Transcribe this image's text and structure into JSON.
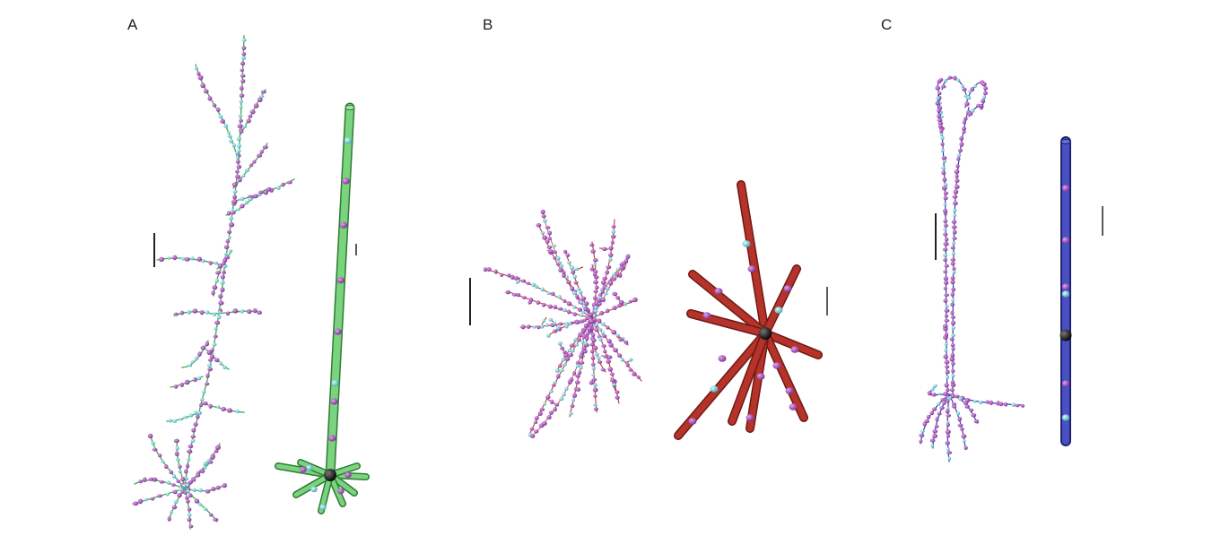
{
  "panels": [
    {
      "label": "A",
      "color": "#4caf50",
      "description_key": "pyramidal-neuron"
    },
    {
      "label": "B",
      "color": "#b5332a",
      "description_key": "stellate-neuron"
    },
    {
      "label": "C",
      "color": "#3a3fa0",
      "description_key": "bipolar-neuron"
    }
  ],
  "colors": {
    "synapse_magenta": "#9c3fb0",
    "synapse_cyan": "#6fd0d8",
    "soma": "#111111",
    "scale_bar": "#222222"
  }
}
